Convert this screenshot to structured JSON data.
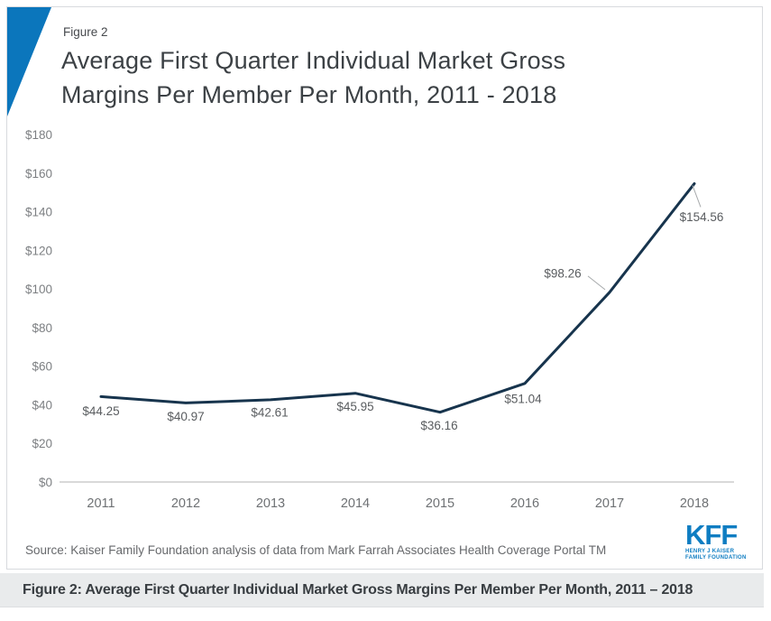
{
  "header": {
    "figure_label": "Figure 2",
    "title": "Average First Quarter Individual Market Gross Margins Per Member Per Month, 2011 - 2018"
  },
  "chart_data": {
    "type": "line",
    "title": "Average First Quarter Individual Market Gross Margins Per Member Per Month, 2011 - 2018",
    "categories": [
      "2011",
      "2012",
      "2013",
      "2014",
      "2015",
      "2016",
      "2017",
      "2018"
    ],
    "values": [
      44.25,
      40.97,
      42.61,
      45.95,
      36.16,
      51.04,
      98.26,
      154.56
    ],
    "point_labels": [
      "$44.25",
      "$40.97",
      "$42.61",
      "$45.95",
      "$36.16",
      "$51.04",
      "$98.26",
      "$154.56"
    ],
    "xlabel": "",
    "ylabel": "",
    "ylim": [
      0,
      180
    ],
    "ytick_step": 20,
    "ytick_labels": [
      "$0",
      "$20",
      "$40",
      "$60",
      "$80",
      "$100",
      "$120",
      "$140",
      "$160",
      "$180"
    ],
    "grid": false,
    "legend": "none",
    "line_color": "#17344d",
    "axis_color": "#d9d9d9",
    "tick_label_color": "#7c7f82",
    "data_label_color": "#595c5f",
    "leader_line_color": "#a6a9ab"
  },
  "footer": {
    "source": "Source: Kaiser Family Foundation analysis of data from Mark Farrah Associates Health Coverage Portal TM",
    "logo": {
      "acronym": "KFF",
      "line1": "HENRY J KAISER",
      "line2": "FAMILY FOUNDATION"
    }
  },
  "caption": {
    "text": "Figure 2: Average First Quarter Individual Market Gross Margins Per Member Per Month, 2011 – 2018"
  },
  "colors": {
    "accent_blue": "#0b76bc",
    "logo_blue": "#0e7dc2",
    "caption_bg": "#e9ebec"
  }
}
